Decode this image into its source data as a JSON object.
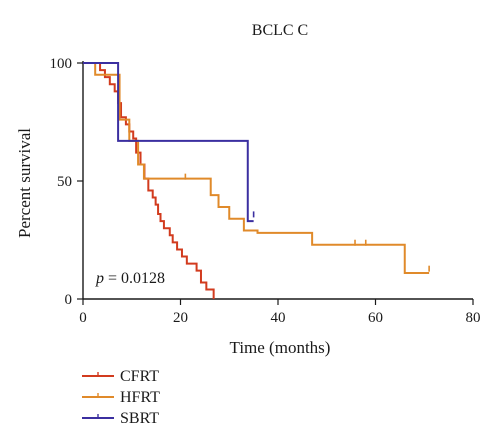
{
  "chart_data": {
    "type": "line",
    "title": "BCLC C",
    "xlabel": "Time (months)",
    "ylabel": "Percent survival",
    "xlim": [
      0,
      80
    ],
    "ylim": [
      0,
      100
    ],
    "xticks": [
      0,
      20,
      40,
      60,
      80
    ],
    "yticks": [
      0,
      50,
      100
    ],
    "grid": false,
    "legend_position": "bottom-left",
    "annotation": {
      "italic": "p",
      "text": " = 0.0128"
    },
    "series": [
      {
        "name": "CFRT",
        "color": "#d23b1e",
        "steps": [
          [
            0,
            100
          ],
          [
            3.5,
            97
          ],
          [
            4.5,
            94
          ],
          [
            5.5,
            91
          ],
          [
            6.5,
            88
          ],
          [
            7.2,
            83
          ],
          [
            7.8,
            77
          ],
          [
            8.8,
            74
          ],
          [
            9.5,
            71
          ],
          [
            10.3,
            68
          ],
          [
            10.9,
            62
          ],
          [
            11.8,
            57
          ],
          [
            12.6,
            51
          ],
          [
            13.4,
            46
          ],
          [
            14.3,
            43
          ],
          [
            14.9,
            40
          ],
          [
            15.4,
            36
          ],
          [
            15.9,
            33
          ],
          [
            16.6,
            30
          ],
          [
            17.8,
            27
          ],
          [
            18.4,
            24
          ],
          [
            19.3,
            21
          ],
          [
            20.3,
            18
          ],
          [
            21.3,
            15
          ],
          [
            23.3,
            12
          ],
          [
            24.2,
            7
          ],
          [
            25.3,
            4
          ],
          [
            26.8,
            0
          ]
        ],
        "end": 26.8,
        "censor": []
      },
      {
        "name": "HFRT",
        "color": "#e08a2a",
        "steps": [
          [
            0,
            100
          ],
          [
            2.5,
            95
          ],
          [
            7.5,
            76
          ],
          [
            9.5,
            67
          ],
          [
            11.3,
            57
          ],
          [
            12.5,
            51
          ],
          [
            26.2,
            44
          ],
          [
            27.8,
            39
          ],
          [
            30.0,
            34
          ],
          [
            33.0,
            29
          ],
          [
            35.8,
            28
          ],
          [
            47.0,
            23
          ],
          [
            66.0,
            11
          ]
        ],
        "end": 71,
        "censor": [
          [
            21,
            51
          ],
          [
            55.8,
            23
          ],
          [
            58,
            23
          ],
          [
            71,
            12
          ]
        ]
      },
      {
        "name": "SBRT",
        "color": "#3b2fa0",
        "steps": [
          [
            0,
            100
          ],
          [
            7.2,
            67
          ],
          [
            33.8,
            33
          ]
        ],
        "end": 35,
        "censor": [
          [
            35,
            35
          ]
        ]
      }
    ]
  }
}
